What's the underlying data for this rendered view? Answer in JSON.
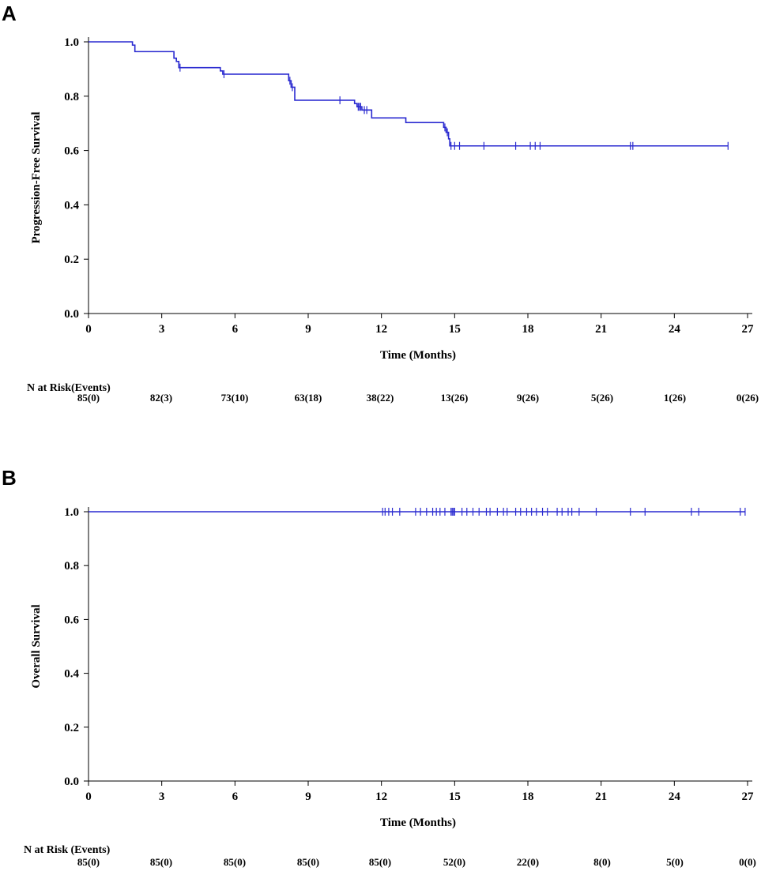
{
  "chart_data": [
    {
      "panel": "A",
      "type": "line",
      "subtype": "kaplan-meier",
      "title": "",
      "xlabel": "Time (Months)",
      "ylabel": "Progression-Free Survival",
      "xlim": [
        0,
        27
      ],
      "ylim": [
        0,
        1
      ],
      "xticks": [
        0,
        3,
        6,
        9,
        12,
        15,
        18,
        21,
        24,
        27
      ],
      "yticks": [
        "0.0",
        "0.2",
        "0.4",
        "0.6",
        "0.8",
        "1.0"
      ],
      "color": "#2a2ad0",
      "series": [
        {
          "name": "PFS",
          "x": [
            0,
            1.8,
            1.9,
            3.5,
            3.6,
            3.7,
            5.4,
            5.5,
            8.2,
            8.3,
            8.45,
            10.9,
            11.0,
            11.2,
            11.6,
            13.0,
            14.55,
            14.65,
            14.75,
            14.8,
            26.2
          ],
          "y": [
            1.0,
            0.988,
            0.964,
            0.94,
            0.928,
            0.905,
            0.893,
            0.881,
            0.857,
            0.833,
            0.785,
            0.773,
            0.761,
            0.749,
            0.72,
            0.703,
            0.685,
            0.667,
            0.643,
            0.617,
            0.617
          ]
        }
      ],
      "censor_x": [
        3.75,
        5.55,
        8.25,
        8.35,
        10.3,
        11.05,
        11.1,
        11.15,
        11.3,
        11.4,
        14.6,
        14.7,
        14.85,
        15.0,
        15.2,
        16.2,
        17.5,
        18.1,
        18.3,
        18.5,
        22.2,
        22.3,
        26.2
      ],
      "risk_table": {
        "title": "N at Risk(Events)",
        "values": [
          "85(0)",
          "82(3)",
          "73(10)",
          "63(18)",
          "38(22)",
          "13(26)",
          "9(26)",
          "5(26)",
          "1(26)",
          "0(26)"
        ]
      }
    },
    {
      "panel": "B",
      "type": "line",
      "subtype": "kaplan-meier",
      "title": "",
      "xlabel": "Time (Months)",
      "ylabel": "Overall Survival",
      "xlim": [
        0,
        27
      ],
      "ylim": [
        0,
        1
      ],
      "xticks": [
        0,
        3,
        6,
        9,
        12,
        15,
        18,
        21,
        24,
        27
      ],
      "yticks": [
        "0.0",
        "0.2",
        "0.4",
        "0.6",
        "0.8",
        "1.0"
      ],
      "color": "#2a2ad0",
      "series": [
        {
          "name": "OS",
          "x": [
            0,
            26.9
          ],
          "y": [
            1.0,
            1.0
          ]
        }
      ],
      "censor_x": [
        12.05,
        12.15,
        12.3,
        12.45,
        12.75,
        13.4,
        13.6,
        13.85,
        14.1,
        14.25,
        14.4,
        14.6,
        14.85,
        14.9,
        14.95,
        15.0,
        15.3,
        15.5,
        15.75,
        16.0,
        16.3,
        16.45,
        16.75,
        17.0,
        17.15,
        17.5,
        17.7,
        17.95,
        18.15,
        18.35,
        18.6,
        18.8,
        19.2,
        19.4,
        19.65,
        19.8,
        20.1,
        20.8,
        22.2,
        22.8,
        24.7,
        25.0,
        26.7,
        26.9
      ],
      "risk_table": {
        "title": "N at Risk (Events)",
        "values": [
          "85(0)",
          "85(0)",
          "85(0)",
          "85(0)",
          "85(0)",
          "52(0)",
          "22(0)",
          "8(0)",
          "5(0)",
          "0(0)"
        ]
      }
    }
  ],
  "panels": {
    "a_label": "A",
    "b_label": "B"
  }
}
